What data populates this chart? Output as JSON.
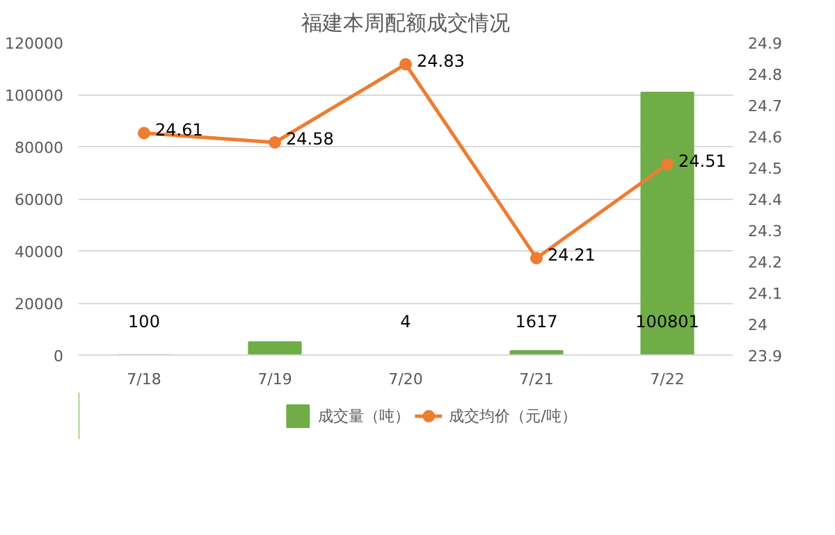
{
  "chart_data": {
    "type": "bar",
    "title": "福建本周配额成交情况",
    "categories": [
      "7/18",
      "7/19",
      "7/20",
      "7/21",
      "7/22"
    ],
    "series": [
      {
        "name": "成交量（吨）",
        "color": "#70ad47",
        "values": [
          100,
          5000,
          4,
          1617,
          100801
        ],
        "value_labels": [
          "100",
          null,
          "4",
          "1617",
          "100801"
        ]
      },
      {
        "name": "成交均价（元/吨）",
        "type": "line",
        "axis": "y2",
        "color": "#ed7d31",
        "marker": "circle",
        "values": [
          24.61,
          24.58,
          24.83,
          24.21,
          24.51
        ],
        "data_labels": true
      }
    ],
    "ylim": [
      0,
      120000
    ],
    "yticks": [
      0,
      20000,
      40000,
      60000,
      80000,
      100000,
      120000
    ],
    "y2lim": [
      23.9,
      24.9
    ],
    "y2ticks": [
      23.9,
      {
        "value": 24.0,
        "label": "24"
      },
      24.1,
      24.2,
      24.3,
      24.4,
      24.5,
      24.6,
      24.7,
      24.8,
      24.9
    ],
    "grid": "y",
    "legend": "bottom"
  }
}
